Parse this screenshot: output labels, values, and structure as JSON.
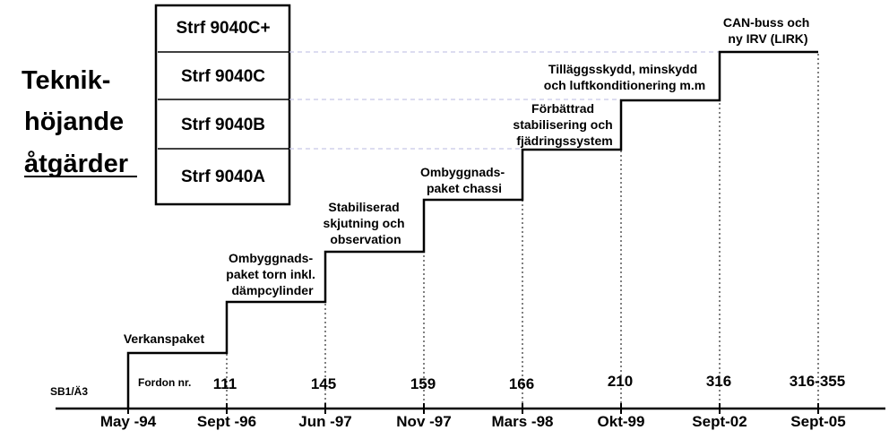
{
  "title": {
    "lines": [
      "Teknik-",
      "höjande",
      "åtgärder"
    ]
  },
  "models": [
    "Strf 9040C+",
    "Strf 9040C",
    "Strf 9040B",
    "Strf 9040A"
  ],
  "row_label": "SB1/Ä3",
  "fordon_label": "Fordon nr.",
  "steps": [
    {
      "date": "May -94",
      "fordon": "",
      "label": [
        "Verkanspaket"
      ]
    },
    {
      "date": "Sept -96",
      "fordon": "111",
      "label": [
        "Ombyggnads-",
        "paket torn inkl.",
        "dämpcylinder"
      ]
    },
    {
      "date": "Jun -97",
      "fordon": "145",
      "label": [
        "Stabiliserad",
        "skjutning och",
        "observation"
      ]
    },
    {
      "date": "Nov -97",
      "fordon": "159",
      "label": [
        "Ombyggnads-",
        "paket chassi"
      ]
    },
    {
      "date": "Mars -98",
      "fordon": "166",
      "label": [
        "Förbättrad",
        "stabilisering och",
        "fjädringssystem"
      ]
    },
    {
      "date": "Okt-99",
      "fordon": "210",
      "label": [
        "Tilläggsskydd, minskydd",
        "och luftkonditionering m.m"
      ]
    },
    {
      "date": "Sept-02",
      "fordon": "316",
      "label": [
        "CAN-buss och",
        "ny IRV (LIRK)"
      ]
    },
    {
      "date": "Sept-05",
      "fordon": "316-355",
      "label": []
    }
  ],
  "colors": {
    "line": "#000000",
    "dashed": "#c8c8e6",
    "text": "#000000"
  }
}
